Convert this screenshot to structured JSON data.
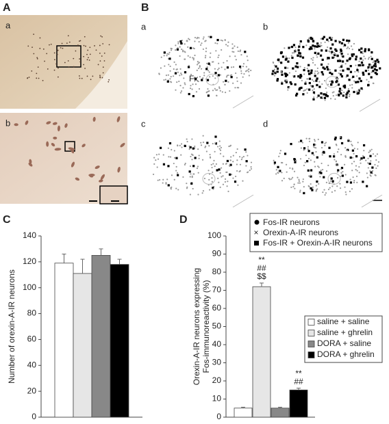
{
  "figure": {
    "A": {
      "label": "A",
      "sub": [
        "a",
        "b"
      ]
    },
    "B": {
      "label": "B",
      "sub": [
        "a",
        "b",
        "c",
        "d"
      ],
      "structure": "Fx"
    },
    "marker_legend": [
      "Fos-IR neurons",
      "Orexin-A-IR neurons",
      "Fos-IR + Orexin-A-IR neurons"
    ]
  },
  "chart_data": [
    {
      "type": "bar",
      "label": "C",
      "ylabel": "Number of orexin-A-IR neurons",
      "categories": [
        null,
        null,
        null,
        null
      ],
      "values": [
        119,
        111,
        125,
        118
      ],
      "errors": [
        7,
        11,
        5,
        4
      ],
      "colors": [
        "#ffffff",
        "#e6e6e6",
        "#888888",
        "#000000"
      ],
      "ylim": [
        0,
        140
      ],
      "yticks": [
        0,
        20,
        40,
        60,
        80,
        100,
        120,
        140
      ]
    },
    {
      "type": "bar",
      "label": "D",
      "ylabel": [
        "Orexin-A-IR neurons expressing",
        "Fos-immunoreactivity (%)"
      ],
      "categories": [
        null
      ],
      "series": [
        {
          "name": "saline + saline",
          "color": "#ffffff",
          "values": [
            5
          ],
          "errors": [
            0.5
          ]
        },
        {
          "name": "saline + ghrelin",
          "color": "#e6e6e6",
          "values": [
            72
          ],
          "errors": [
            2
          ],
          "annotations": [
            "**",
            "##",
            "$$"
          ]
        },
        {
          "name": "DORA + saline",
          "color": "#888888",
          "values": [
            5
          ],
          "errors": [
            0.5
          ]
        },
        {
          "name": "DORA + ghrelin",
          "color": "#000000",
          "values": [
            15
          ],
          "errors": [
            1
          ],
          "annotations": [
            "**",
            "##"
          ]
        }
      ],
      "ylim": [
        0,
        100
      ],
      "yticks": [
        0,
        10,
        20,
        30,
        40,
        50,
        60,
        70,
        80,
        90,
        100
      ],
      "legend": "right"
    }
  ]
}
